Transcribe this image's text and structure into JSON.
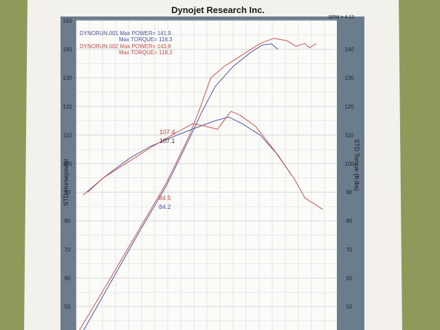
{
  "header": {
    "title": "Dynojet Research Inc.",
    "rpm_label": "RPM = 4.13"
  },
  "legend": {
    "run1_line1": "DYNORUN.001  Max POWER= 141.9",
    "run1_line2": "Max TORQUE= 116.3",
    "run2_line1": "DYNORUN.002  Max POWER= 143.8",
    "run2_line2": "Max TORQUE= 118.3"
  },
  "annotations": {
    "torque_red": "107.4",
    "torque_blue": "107.1",
    "power_red": "84.5",
    "power_blue": "84.2"
  },
  "colors": {
    "background": "#8f9a5a",
    "paper": "#f2f1ec",
    "frame": "#6b7c8c",
    "grid": "#d6d9de",
    "run1": "#4a52a8",
    "run2": "#d84a4a",
    "tick_text": "#1e2430"
  },
  "chart_data": {
    "type": "line",
    "title": "Dynojet Research Inc.",
    "ylabel": "STD Horsepower",
    "y2label": "STD Torque (ft-lbs)",
    "xlabel": "",
    "ylim": [
      40,
      150
    ],
    "yticks": [
      150,
      140,
      130,
      120,
      110,
      100,
      90,
      80,
      70,
      60,
      50
    ],
    "y2ticks": [
      140,
      130,
      120,
      110,
      100,
      90,
      80,
      70,
      60,
      50
    ],
    "grid": true,
    "legend_position": "top-left",
    "series": [
      {
        "name": "DYNORUN.001 power",
        "color": "#4a52a8",
        "points": [
          [
            0.02,
            40
          ],
          [
            0.15,
            58
          ],
          [
            0.28,
            76
          ],
          [
            0.4,
            92
          ],
          [
            0.5,
            108
          ],
          [
            0.56,
            118
          ],
          [
            0.62,
            127
          ],
          [
            0.7,
            134
          ],
          [
            0.78,
            139
          ],
          [
            0.83,
            141.5
          ],
          [
            0.87,
            141.9
          ],
          [
            0.9,
            140
          ]
        ]
      },
      {
        "name": "DYNORUN.002 power",
        "color": "#d84a4a",
        "points": [
          [
            0.0,
            40
          ],
          [
            0.13,
            57
          ],
          [
            0.28,
            77
          ],
          [
            0.4,
            93
          ],
          [
            0.5,
            109
          ],
          [
            0.55,
            119
          ],
          [
            0.6,
            130
          ],
          [
            0.66,
            134
          ],
          [
            0.74,
            138
          ],
          [
            0.82,
            142
          ],
          [
            0.88,
            143.8
          ],
          [
            0.94,
            143
          ],
          [
            0.98,
            141
          ],
          [
            1.02,
            142
          ],
          [
            1.04,
            140.5
          ],
          [
            1.07,
            142
          ]
        ]
      },
      {
        "name": "DYNORUN.001 torque",
        "color": "#4a52a8",
        "points": [
          [
            0.05,
            90
          ],
          [
            0.12,
            95
          ],
          [
            0.24,
            102
          ],
          [
            0.33,
            106
          ],
          [
            0.45,
            110
          ],
          [
            0.55,
            113
          ],
          [
            0.62,
            115
          ],
          [
            0.68,
            116.3
          ],
          [
            0.74,
            114
          ],
          [
            0.82,
            110
          ],
          [
            0.9,
            103
          ],
          [
            0.96,
            96
          ]
        ]
      },
      {
        "name": "DYNORUN.002 torque",
        "color": "#d84a4a",
        "points": [
          [
            0.03,
            89
          ],
          [
            0.12,
            95
          ],
          [
            0.24,
            101
          ],
          [
            0.34,
            106
          ],
          [
            0.45,
            111
          ],
          [
            0.52,
            114
          ],
          [
            0.58,
            113
          ],
          [
            0.63,
            112
          ],
          [
            0.69,
            118.3
          ],
          [
            0.73,
            117
          ],
          [
            0.8,
            113
          ],
          [
            0.88,
            105
          ],
          [
            0.97,
            95
          ],
          [
            1.02,
            88
          ],
          [
            1.06,
            86
          ],
          [
            1.1,
            84
          ]
        ]
      }
    ]
  }
}
